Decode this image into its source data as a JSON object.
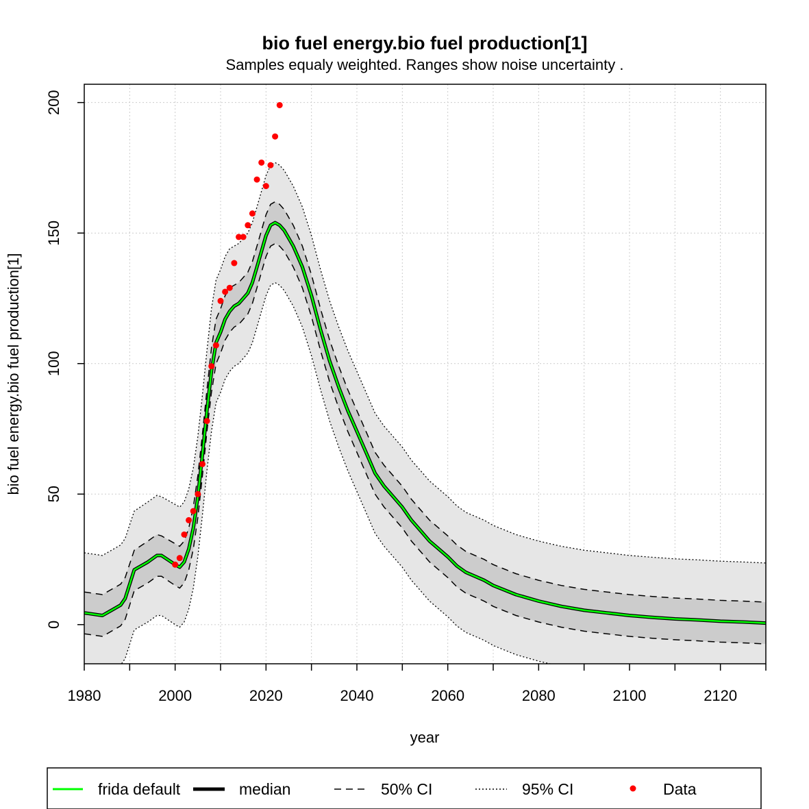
{
  "chart_data": {
    "type": "line",
    "title": "bio fuel energy.bio fuel production[1]",
    "subtitle": "Samples equaly weighted. Ranges show  noise uncertainty .",
    "xlabel": "year",
    "ylabel": "bio fuel energy.bio fuel production[1]",
    "xlim": [
      1980,
      2130
    ],
    "ylim": [
      -15,
      207
    ],
    "x_ticks": [
      1980,
      2000,
      2020,
      2040,
      2060,
      2080,
      2100,
      2120
    ],
    "y_ticks": [
      0,
      50,
      100,
      150,
      200
    ],
    "x_tick_labels": [
      "1980",
      "2000",
      "2020",
      "2040",
      "2060",
      "2080",
      "2100",
      "2120"
    ],
    "y_tick_labels": [
      "0",
      "50",
      "100",
      "150",
      "200"
    ],
    "grid": true,
    "legend_position": "bottom",
    "legend": [
      {
        "label": "frida default",
        "style": "green-line"
      },
      {
        "label": "median",
        "style": "thick-black-line"
      },
      {
        "label": "50% CI",
        "style": "dashed-line"
      },
      {
        "label": "95% CI",
        "style": "dotted-line"
      },
      {
        "label": "Data",
        "style": "red-point"
      }
    ],
    "colors": {
      "frida_default": "#00ff00",
      "median": "#000000",
      "ci50_fill": "#cccccc",
      "ci95_fill": "#e6e6e6",
      "data": "#ff0000"
    },
    "x": [
      1980,
      1984,
      1986,
      1988,
      1989,
      1991,
      1994,
      1996,
      1997,
      2000,
      2001,
      2002,
      2003,
      2004,
      2005,
      2006,
      2007,
      2008,
      2009,
      2010,
      2011,
      2012,
      2013,
      2014,
      2015,
      2016,
      2017,
      2018,
      2019,
      2020,
      2021,
      2022,
      2023,
      2024,
      2025,
      2026,
      2027,
      2028,
      2030,
      2032,
      2034,
      2036,
      2038,
      2040,
      2042,
      2044,
      2046,
      2048,
      2050,
      2052,
      2054,
      2056,
      2058,
      2060,
      2062,
      2064,
      2066,
      2068,
      2070,
      2075,
      2080,
      2085,
      2090,
      2095,
      2100,
      2105,
      2110,
      2115,
      2120,
      2125,
      2130
    ],
    "series": [
      {
        "name": "frida default",
        "values": [
          4.5,
          3.5,
          5.5,
          7.5,
          10,
          21,
          24,
          26.5,
          26.5,
          23,
          22,
          24,
          29,
          37,
          49,
          65,
          82,
          97,
          108,
          112,
          117,
          120,
          122,
          123,
          125,
          127,
          131,
          137,
          143,
          149,
          153,
          154,
          153,
          151,
          148,
          145,
          141,
          137,
          126,
          113,
          101,
          91,
          82,
          74,
          66,
          58,
          53,
          49,
          45,
          40,
          36,
          32,
          29,
          26,
          22.5,
          20,
          18.5,
          17,
          15,
          11.5,
          9,
          7,
          5.5,
          4.5,
          3.5,
          2.8,
          2.2,
          1.8,
          1.3,
          1,
          0.6
        ]
      },
      {
        "name": "median",
        "values": [
          4.5,
          3.5,
          5.5,
          7.5,
          10,
          21,
          24,
          26.5,
          26.5,
          23,
          22,
          24,
          29,
          37,
          49,
          65,
          82,
          97,
          108,
          112,
          117,
          120,
          122,
          123,
          125,
          127,
          131,
          137,
          143,
          149,
          153,
          154,
          153,
          151,
          148,
          145,
          141,
          137,
          126,
          113,
          101,
          91,
          82,
          74,
          66,
          58,
          53,
          49,
          45,
          40,
          36,
          32,
          29,
          26,
          22.5,
          20,
          18.5,
          17,
          15,
          11.5,
          9,
          7,
          5.5,
          4.5,
          3.5,
          2.8,
          2.2,
          1.8,
          1.3,
          1,
          0.6
        ]
      }
    ],
    "ci50_upper": [
      12.5,
      11.5,
      13.5,
      15.5,
      18,
      28.5,
      32,
      34.5,
      34,
      31,
      30,
      32,
      37,
      45,
      57,
      73,
      90,
      106,
      117,
      121,
      126,
      129,
      130,
      131,
      133,
      135,
      139,
      145,
      151,
      157,
      161,
      162,
      161,
      159,
      156,
      153,
      149,
      145,
      134,
      121,
      109,
      99,
      90,
      82,
      74,
      66,
      61,
      57,
      53,
      48,
      44,
      40,
      37,
      34,
      30.5,
      28,
      26.5,
      25,
      23,
      19.5,
      17,
      15,
      13.5,
      12.5,
      11.5,
      10.8,
      10.2,
      9.8,
      9.3,
      9,
      8.6
    ],
    "ci50_lower": [
      -3.5,
      -4.5,
      -2.5,
      -0.5,
      2,
      13,
      16,
      18.5,
      18.5,
      15,
      14,
      16,
      21,
      29,
      41,
      57,
      74,
      89,
      100,
      104,
      109,
      112,
      114,
      115,
      117,
      119,
      123,
      129,
      135,
      141,
      145,
      146,
      145,
      143,
      140,
      137,
      133,
      129,
      118,
      105,
      93,
      83,
      74,
      66,
      58,
      50,
      45,
      41,
      37,
      32,
      28,
      24,
      21,
      18,
      14.5,
      12,
      10.5,
      9,
      7,
      3.5,
      1,
      -1,
      -2.5,
      -3.5,
      -4.5,
      -5.2,
      -5.8,
      -6.2,
      -6.7,
      -7,
      -7.4
    ],
    "ci95_upper": [
      27.5,
      26.5,
      28.5,
      30.5,
      33,
      43.5,
      47,
      49.5,
      49,
      46,
      45,
      47,
      52,
      60,
      72,
      88,
      105,
      121,
      132,
      136,
      141,
      144,
      145,
      146,
      148,
      150,
      154,
      160,
      166,
      172,
      176,
      177,
      176,
      174,
      171,
      168,
      164,
      160,
      149,
      136,
      124,
      114,
      105,
      97,
      89,
      81,
      76,
      72,
      68,
      63,
      59,
      55,
      52,
      49,
      45.5,
      43,
      41.5,
      40,
      38,
      34.5,
      32,
      30,
      28.5,
      27.5,
      26.5,
      25.8,
      25.2,
      24.8,
      24.3,
      24,
      23.6
    ],
    "ci95_lower": [
      -18.5,
      -19.5,
      -17.5,
      -15.5,
      -13,
      -2,
      1,
      3.5,
      3.5,
      0,
      -1,
      1,
      6,
      14,
      26,
      42,
      59,
      74,
      85,
      89,
      94,
      97,
      99,
      100,
      102,
      104,
      108,
      114,
      120,
      126,
      130,
      131,
      130,
      128,
      125,
      122,
      118,
      114,
      103,
      90,
      78,
      68,
      59,
      51,
      43,
      35,
      30,
      26,
      22,
      17,
      13,
      9,
      6,
      3,
      -0.5,
      -3,
      -4.5,
      -6,
      -8,
      -11.5,
      -14,
      -16,
      -17.5,
      -18.5,
      -19.5,
      -20.2,
      -20.8,
      -21.2,
      -21.7,
      -22,
      -22.4
    ],
    "data_points": {
      "x": [
        2000,
        2001,
        2002,
        2003,
        2004,
        2005,
        2006,
        2007,
        2008,
        2009,
        2010,
        2011,
        2012,
        2013,
        2014,
        2015,
        2016,
        2017,
        2018,
        2019,
        2020,
        2021,
        2022,
        2023
      ],
      "y": [
        23,
        25.5,
        34.5,
        40,
        43.5,
        50,
        61.5,
        78,
        99,
        107,
        124,
        127.5,
        129,
        138.5,
        148.5,
        148.5,
        153,
        157.5,
        170.5,
        177,
        168,
        176,
        187,
        199
      ]
    }
  }
}
